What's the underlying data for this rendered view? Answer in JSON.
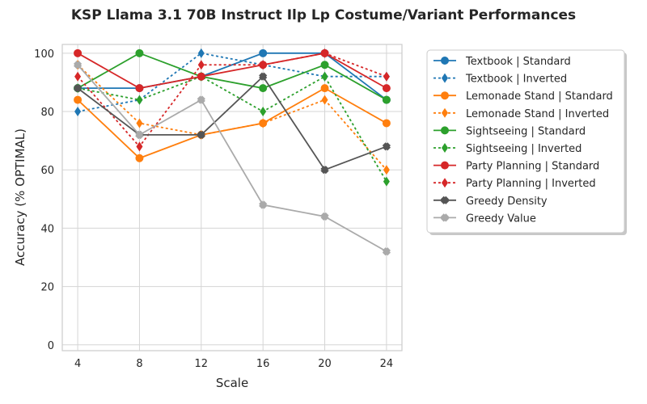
{
  "chart_data": {
    "type": "line",
    "title": "KSP Llama 3.1 70B Instruct Ilp Lp Costume/Variant Performances",
    "xlabel": "Scale",
    "ylabel": "Accuracy (% OPTIMAL)",
    "x": [
      4,
      8,
      12,
      16,
      20,
      24
    ],
    "xlim": [
      3,
      25
    ],
    "ylim": [
      -2,
      103
    ],
    "yticks": [
      0,
      20,
      40,
      60,
      80,
      100
    ],
    "grid": true,
    "legend_position": "outside-right",
    "series": [
      {
        "name": "Textbook | Standard",
        "color": "#1f77b4",
        "dash": "solid",
        "marker": "circle",
        "values": [
          88,
          88,
          92,
          100,
          100,
          84
        ]
      },
      {
        "name": "Textbook | Inverted",
        "color": "#1f77b4",
        "dash": "dotted",
        "marker": "diamond",
        "values": [
          80,
          84,
          100,
          96,
          92,
          92
        ]
      },
      {
        "name": "Lemonade Stand | Standard",
        "color": "#ff7f0e",
        "dash": "solid",
        "marker": "circle",
        "values": [
          84,
          64,
          72,
          76,
          88,
          76
        ]
      },
      {
        "name": "Lemonade Stand | Inverted",
        "color": "#ff7f0e",
        "dash": "dotted",
        "marker": "diamond",
        "values": [
          96,
          76,
          72,
          76,
          84,
          60
        ]
      },
      {
        "name": "Sightseeing | Standard",
        "color": "#2ca02c",
        "dash": "solid",
        "marker": "circle",
        "values": [
          88,
          100,
          92,
          88,
          96,
          84
        ]
      },
      {
        "name": "Sightseeing | Inverted",
        "color": "#2ca02c",
        "dash": "dotted",
        "marker": "diamond",
        "values": [
          88,
          84,
          92,
          80,
          92,
          56
        ]
      },
      {
        "name": "Party Planning | Standard",
        "color": "#d62728",
        "dash": "solid",
        "marker": "circle",
        "values": [
          100,
          88,
          92,
          96,
          100,
          88
        ]
      },
      {
        "name": "Party Planning | Inverted",
        "color": "#d62728",
        "dash": "dotted",
        "marker": "diamond",
        "values": [
          92,
          68,
          96,
          96,
          100,
          92
        ]
      },
      {
        "name": "Greedy Density",
        "color": "#555555",
        "dash": "solid",
        "marker": "x",
        "values": [
          88,
          72,
          72,
          92,
          60,
          68
        ]
      },
      {
        "name": "Greedy Value",
        "color": "#aaaaaa",
        "dash": "solid",
        "marker": "x",
        "values": [
          96,
          72,
          84,
          48,
          44,
          32
        ]
      }
    ]
  }
}
